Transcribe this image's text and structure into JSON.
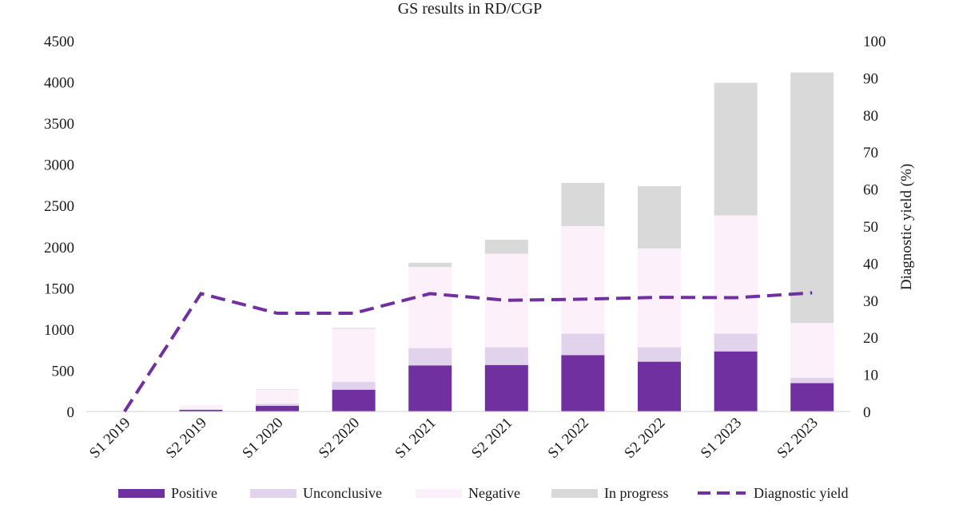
{
  "chart_data": {
    "type": "bar",
    "stacked": true,
    "title": "GS results in RD/CGP",
    "xlabel": "",
    "ylabel_left": "",
    "ylabel_right": "Diagnostic yield (%)",
    "categories": [
      "S1 2019",
      "S2 2019",
      "S1 2020",
      "S2 2020",
      "S1 2021",
      "S2 2021",
      "S1 2022",
      "S2 2022",
      "S1 2023",
      "S2 2023"
    ],
    "ylim_left": [
      0,
      4500
    ],
    "yticks_left": [
      0,
      500,
      1000,
      1500,
      2000,
      2500,
      3000,
      3500,
      4000,
      4500
    ],
    "ylim_right": [
      0,
      100
    ],
    "yticks_right": [
      0,
      10,
      20,
      30,
      40,
      50,
      60,
      70,
      80,
      90,
      100
    ],
    "series": [
      {
        "name": "Positive",
        "color": "#7030a0",
        "values": [
          2,
          20,
          70,
          265,
          560,
          565,
          685,
          605,
          730,
          345
        ]
      },
      {
        "name": "Unconclusive",
        "color": "#e0d3eb",
        "values": [
          1,
          8,
          25,
          95,
          210,
          215,
          260,
          175,
          215,
          65
        ]
      },
      {
        "name": "Negative",
        "color": "#fcf0fb",
        "values": [
          3,
          42,
          170,
          645,
          985,
          1135,
          1305,
          1200,
          1435,
          665
        ]
      },
      {
        "name": "In progress",
        "color": "#d9d9d9",
        "values": [
          0,
          2,
          5,
          10,
          50,
          170,
          525,
          755,
          1610,
          3040
        ]
      }
    ],
    "line_series": {
      "name": "Diagnostic yield",
      "color": "#7030a0",
      "axis": "right",
      "style": "dashed",
      "values": [
        0,
        31.8,
        26.5,
        26.5,
        31.8,
        30.0,
        30.3,
        30.8,
        30.7,
        32.0
      ]
    },
    "legend_position": "bottom",
    "grid": false
  }
}
